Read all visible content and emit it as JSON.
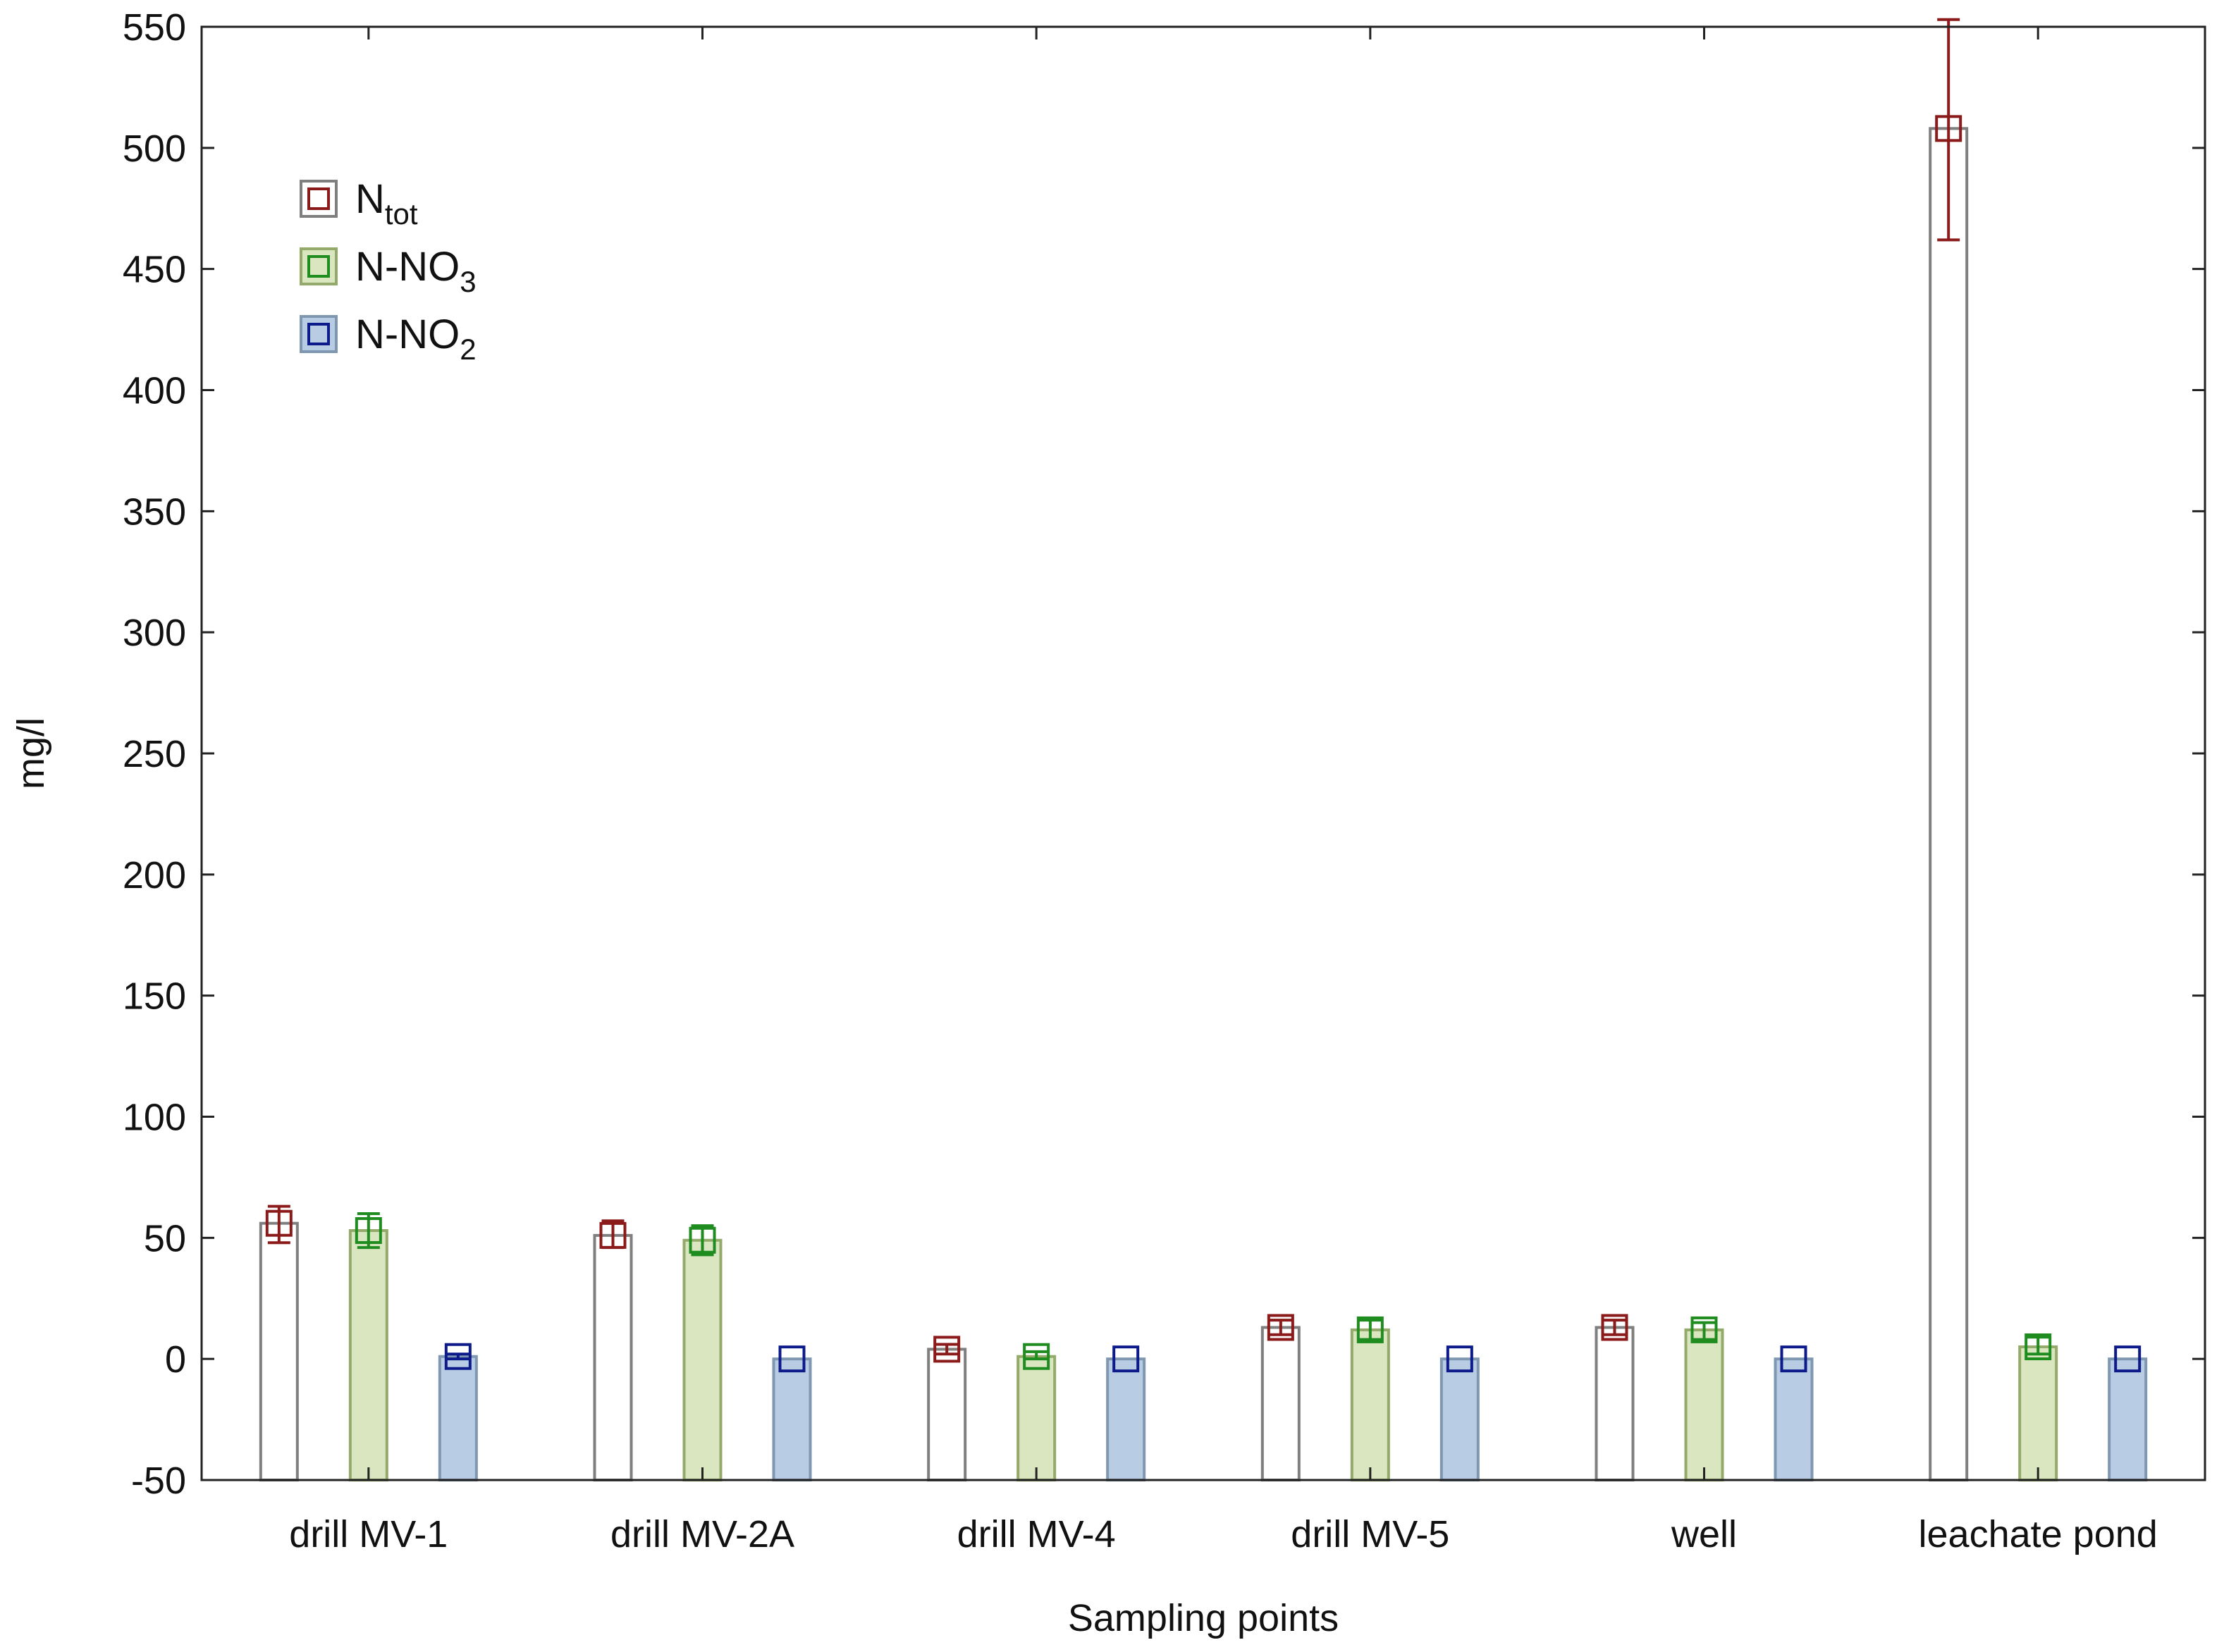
{
  "chart_data": {
    "type": "bar",
    "xlabel": "Sampling points",
    "ylabel": "mg/l",
    "ylim": [
      -50,
      550
    ],
    "yticks": [
      -50,
      0,
      50,
      100,
      150,
      200,
      250,
      300,
      350,
      400,
      450,
      500,
      550
    ],
    "grid": false,
    "legend_position": "top-left",
    "categories": [
      "drill MV-1",
      "drill MV-2A",
      "drill MV-4",
      "drill MV-5",
      "well",
      "leachate pond"
    ],
    "series": [
      {
        "name": "N",
        "name_sub": "tot",
        "bar_fill": "#ffffff",
        "bar_stroke": "#7f7f7f",
        "marker_color": "#8b1a1a",
        "values": [
          56,
          51,
          4,
          13,
          13,
          508
        ],
        "err_low": [
          48,
          46,
          2,
          10,
          10,
          462
        ],
        "err_high": [
          63,
          57,
          6,
          16,
          16,
          553
        ]
      },
      {
        "name": "N-NO",
        "name_sub": "3",
        "bar_fill": "#d9e6c0",
        "bar_stroke": "#93aa6a",
        "marker_color": "#1e8c1e",
        "values": [
          53,
          49,
          1,
          12,
          12,
          5
        ],
        "err_low": [
          46,
          43,
          0,
          8,
          8,
          2
        ],
        "err_high": [
          60,
          55,
          3,
          16,
          15,
          9
        ]
      },
      {
        "name": "N-NO",
        "name_sub": "2",
        "bar_fill": "#b8cde4",
        "bar_stroke": "#7f97b0",
        "marker_color": "#0d1a8a",
        "values": [
          1,
          0,
          0,
          0,
          0,
          0
        ],
        "err_low": [
          0,
          0,
          0,
          0,
          0,
          0
        ],
        "err_high": [
          2,
          0,
          0,
          0,
          0,
          0
        ]
      }
    ]
  }
}
